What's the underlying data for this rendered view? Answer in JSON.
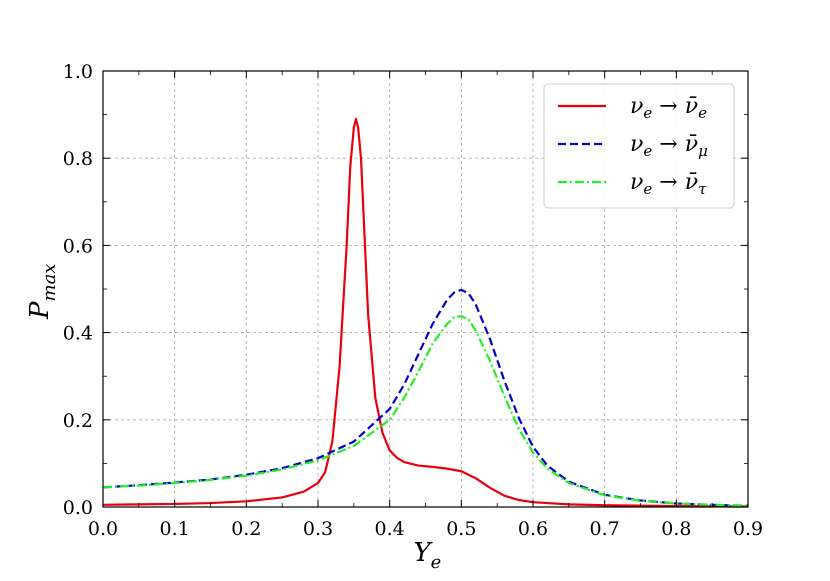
{
  "chart_data": {
    "type": "line",
    "xlabel": "Y",
    "xlabel_sub": "e",
    "ylabel": "P",
    "ylabel_sub": "max",
    "xlim": [
      0.0,
      0.9
    ],
    "ylim": [
      0.0,
      1.0
    ],
    "xticks": [
      "0.0",
      "0.1",
      "0.2",
      "0.3",
      "0.4",
      "0.5",
      "0.6",
      "0.7",
      "0.8",
      "0.9"
    ],
    "yticks": [
      "0.0",
      "0.2",
      "0.4",
      "0.6",
      "0.8",
      "1.0"
    ],
    "grid": true,
    "legend_position": "top-right",
    "series": [
      {
        "name": "ν_e → ν̄_e",
        "label_main": "ν",
        "label_sub": "e",
        "label_target": "ν̄",
        "label_target_sub": "e",
        "color": "#e8000b",
        "dash": "solid",
        "x": [
          0.0,
          0.05,
          0.1,
          0.15,
          0.2,
          0.25,
          0.28,
          0.3,
          0.31,
          0.32,
          0.33,
          0.34,
          0.345,
          0.35,
          0.353,
          0.356,
          0.36,
          0.365,
          0.37,
          0.38,
          0.39,
          0.4,
          0.41,
          0.42,
          0.44,
          0.46,
          0.48,
          0.5,
          0.52,
          0.54,
          0.56,
          0.58,
          0.6,
          0.65,
          0.7,
          0.8,
          0.9
        ],
        "y": [
          0.005,
          0.006,
          0.007,
          0.009,
          0.013,
          0.022,
          0.035,
          0.055,
          0.08,
          0.15,
          0.32,
          0.6,
          0.78,
          0.87,
          0.89,
          0.87,
          0.8,
          0.62,
          0.44,
          0.25,
          0.17,
          0.13,
          0.113,
          0.103,
          0.095,
          0.092,
          0.088,
          0.082,
          0.066,
          0.044,
          0.026,
          0.016,
          0.011,
          0.006,
          0.004,
          0.002,
          0.001
        ]
      },
      {
        "name": "ν_e → ν̄_μ",
        "label_main": "ν",
        "label_sub": "e",
        "label_target": "ν̄",
        "label_target_sub": "μ",
        "color": "#0000cc",
        "dash": "dashed",
        "x": [
          0.0,
          0.05,
          0.1,
          0.15,
          0.2,
          0.25,
          0.3,
          0.35,
          0.4,
          0.42,
          0.44,
          0.46,
          0.48,
          0.49,
          0.5,
          0.51,
          0.52,
          0.54,
          0.56,
          0.58,
          0.6,
          0.62,
          0.65,
          0.7,
          0.75,
          0.8,
          0.85,
          0.9
        ],
        "y": [
          0.045,
          0.05,
          0.056,
          0.063,
          0.074,
          0.089,
          0.112,
          0.15,
          0.225,
          0.28,
          0.35,
          0.42,
          0.475,
          0.492,
          0.498,
          0.49,
          0.465,
          0.385,
          0.29,
          0.205,
          0.138,
          0.095,
          0.058,
          0.028,
          0.015,
          0.008,
          0.005,
          0.003
        ]
      },
      {
        "name": "ν_e → ν̄_τ",
        "label_main": "ν",
        "label_sub": "e",
        "label_target": "ν̄",
        "label_target_sub": "τ",
        "color": "#22ee22",
        "dash": "dashdot",
        "x": [
          0.0,
          0.05,
          0.1,
          0.15,
          0.2,
          0.25,
          0.3,
          0.35,
          0.4,
          0.42,
          0.44,
          0.46,
          0.48,
          0.49,
          0.5,
          0.51,
          0.52,
          0.54,
          0.56,
          0.58,
          0.6,
          0.62,
          0.65,
          0.7,
          0.75,
          0.8,
          0.85,
          0.9
        ],
        "y": [
          0.045,
          0.049,
          0.055,
          0.062,
          0.072,
          0.086,
          0.107,
          0.14,
          0.2,
          0.25,
          0.31,
          0.375,
          0.42,
          0.435,
          0.438,
          0.43,
          0.405,
          0.335,
          0.255,
          0.18,
          0.125,
          0.088,
          0.055,
          0.027,
          0.014,
          0.008,
          0.005,
          0.003
        ]
      }
    ]
  }
}
